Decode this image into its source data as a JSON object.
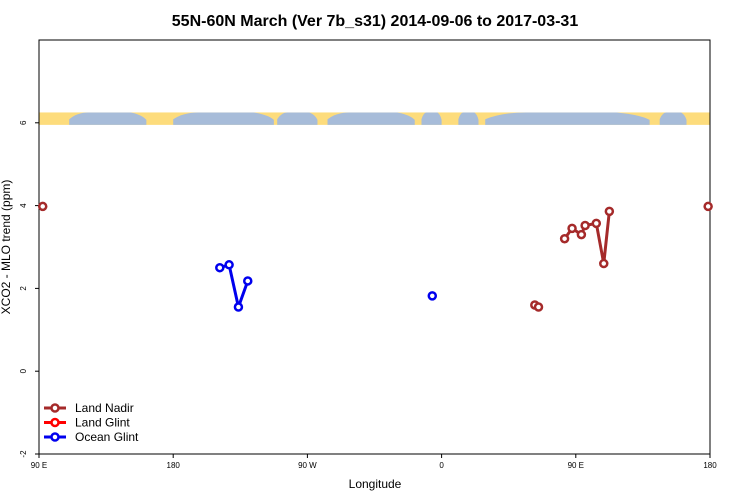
{
  "chart_data": {
    "type": "scatter",
    "title": "55N-60N March (Ver 7b_s31)   2014-09-06 to 2017-03-31",
    "xlabel": "Longitude",
    "ylabel": "XCO2 - MLO trend (ppm)",
    "xlim": [
      90,
      450
    ],
    "ylim": [
      -2,
      8
    ],
    "x_ticks": [
      {
        "value": 90,
        "label": "90 E"
      },
      {
        "value": 180,
        "label": "180"
      },
      {
        "value": 270,
        "label": "90 W"
      },
      {
        "value": 360,
        "label": "0"
      },
      {
        "value": 450,
        "label": "90 E"
      },
      {
        "value": 540,
        "label": "180"
      }
    ],
    "y_ticks": [
      {
        "value": -2,
        "label": "-2"
      },
      {
        "value": 0,
        "label": "0"
      },
      {
        "value": 2,
        "label": "2"
      },
      {
        "value": 4,
        "label": "4"
      },
      {
        "value": 6,
        "label": "6"
      }
    ],
    "map_strip": {
      "y_top": 6.25,
      "y_bottom": 5.95,
      "ocean_color": "#a7bcd9",
      "land_color": "#fddc7c"
    },
    "series": [
      {
        "name": "Land Nadir",
        "color": "#a52a2a",
        "points": [
          {
            "x": 92,
            "y": 3.98,
            "segment": 0
          },
          {
            "x": 356,
            "y": 1.6,
            "segment": 1
          },
          {
            "x": 358,
            "y": 1.55,
            "segment": 1
          },
          {
            "x": 372,
            "y": 3.2,
            "segment": 2
          },
          {
            "x": 376,
            "y": 3.45,
            "segment": 2
          },
          {
            "x": 381,
            "y": 3.3,
            "segment": 2
          },
          {
            "x": 383,
            "y": 3.52,
            "segment": 2
          },
          {
            "x": 389,
            "y": 3.57,
            "segment": 2
          },
          {
            "x": 393,
            "y": 2.6,
            "segment": 2
          },
          {
            "x": 396,
            "y": 3.86,
            "segment": 2
          },
          {
            "x": 449,
            "y": 3.98,
            "segment": 3
          }
        ]
      },
      {
        "name": "Land Glint",
        "color": "#ff0000",
        "points": []
      },
      {
        "name": "Ocean Glint",
        "color": "#0000ee",
        "points": [
          {
            "x": 187,
            "y": 2.5,
            "segment": 0
          },
          {
            "x": 192,
            "y": 2.57,
            "segment": 0
          },
          {
            "x": 197,
            "y": 1.55,
            "segment": 0
          },
          {
            "x": 202,
            "y": 2.18,
            "segment": 0
          },
          {
            "x": 301,
            "y": 1.82,
            "segment": 1
          }
        ]
      }
    ],
    "legend_placement": "bottom-left"
  }
}
